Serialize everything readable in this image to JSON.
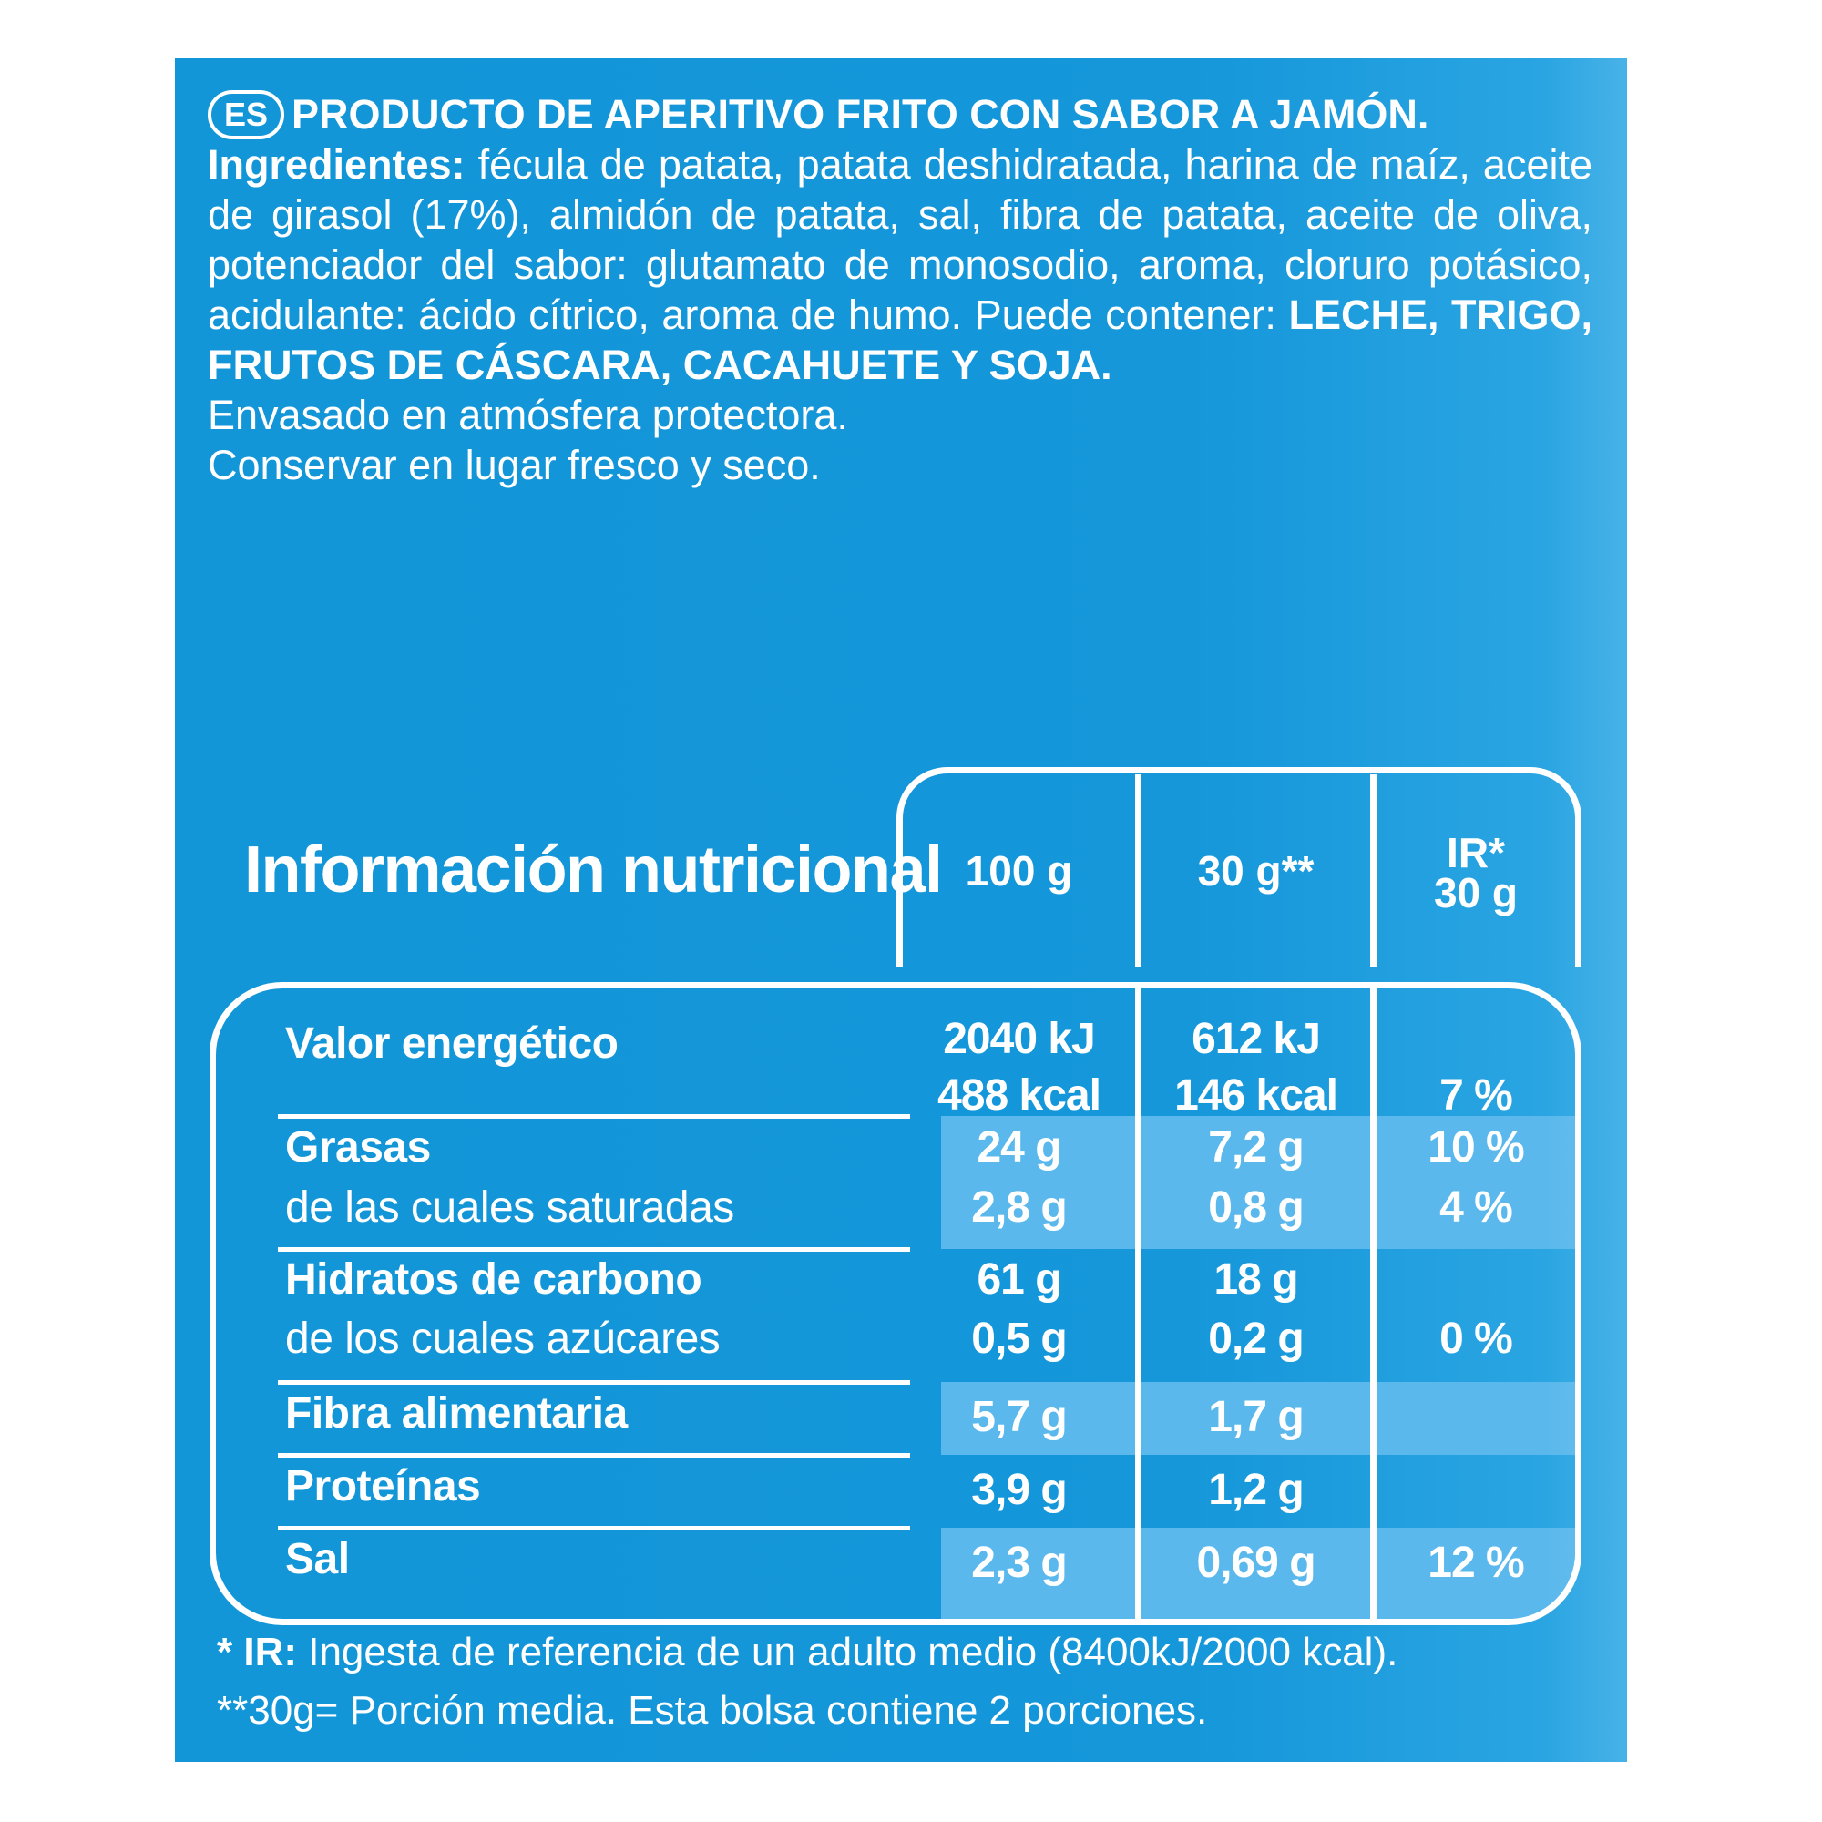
{
  "header": {
    "lang_badge": "ES",
    "product_name": "PRODUCTO DE APERITIVO FRITO CON SABOR A JAMÓN."
  },
  "ingredients": {
    "label": "Ingredientes:",
    "text": "fécula de patata, patata deshidratada, harina de maíz, aceite de girasol (17%), almidón de patata, sal, fibra de patata, aceite de oliva, potenciador del sabor: glutamato de monosodio, aroma, cloruro potásico, acidulante: ácido cítrico, aroma de humo. Puede contener:",
    "allergens": "LECHE, TRIGO, FRUTOS DE CÁSCARA, CACAHUETE Y SOJA."
  },
  "notes": {
    "packaging": "Envasado en atmósfera protectora.",
    "storage": "Conservar en lugar fresco y seco."
  },
  "nutrition": {
    "title": "Información nutricional",
    "columns": {
      "per100": "100 g",
      "per30": "30 g**",
      "ir_top": "IR*",
      "ir_bottom": "30 g"
    },
    "energy": {
      "label": "Valor energético",
      "per100_kj": "2040 kJ",
      "per100_kcal": "488 kcal",
      "per30_kj": "612 kJ",
      "per30_kcal": "146 kcal",
      "ir": "7 %"
    },
    "fat": {
      "label": "Grasas",
      "per100": "24 g",
      "per30": "7,2 g",
      "ir": "10 %"
    },
    "saturated": {
      "label": "de las cuales saturadas",
      "per100": "2,8 g",
      "per30": "0,8 g",
      "ir": "4 %"
    },
    "carbs": {
      "label": "Hidratos de carbono",
      "per100": "61 g",
      "per30": "18 g"
    },
    "sugars": {
      "label": "de los cuales azúcares",
      "per100": "0,5 g",
      "per30": "0,2 g",
      "ir": "0 %"
    },
    "fiber": {
      "label": "Fibra alimentaria",
      "per100": "5,7 g",
      "per30": "1,7 g"
    },
    "protein": {
      "label": "Proteínas",
      "per100": "3,9 g",
      "per30": "1,2 g"
    },
    "salt": {
      "label": "Sal",
      "per100": "2,3 g",
      "per30": "0,69 g",
      "ir": "12 %"
    }
  },
  "footnotes": {
    "ir_mark": "* IR:",
    "ir_text": "Ingesta de referencia de un adulto medio (8400kJ/2000 kcal).",
    "portion": "**30g= Porción media. Esta bolsa contiene 2 porciones."
  }
}
